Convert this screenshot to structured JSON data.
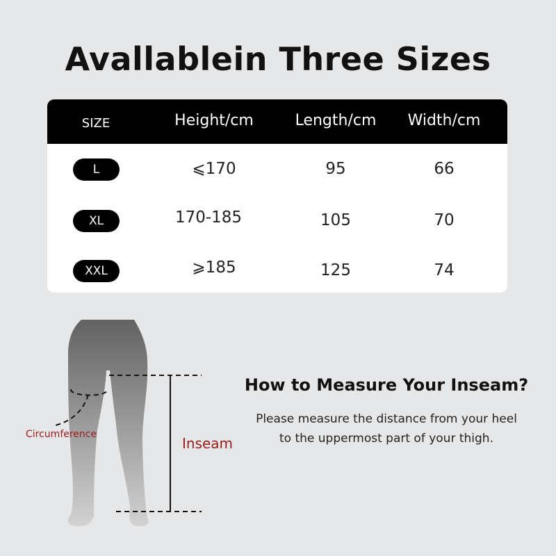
{
  "title": "Avallablein Three Sizes",
  "table": {
    "headers": [
      "SIZE",
      "Height/cm",
      "Length/cm",
      "Width/cm"
    ],
    "rows": [
      {
        "size": "L",
        "height": "⩽170",
        "length": "95",
        "width": "66"
      },
      {
        "size": "XL",
        "height": "170-185",
        "length": "105",
        "width": "70"
      },
      {
        "size": "XXL",
        "height": "⩾185",
        "length": "125",
        "width": "74"
      }
    ]
  },
  "diagram": {
    "circumference_label": "Circumference",
    "inseam_label": "Inseam",
    "label_color": "#9b1b1b"
  },
  "instructions": {
    "heading": "How to Measure Your Inseam?",
    "line1": "Please measure the distance from your heel",
    "line2": "to the uppermost part of your thigh."
  }
}
